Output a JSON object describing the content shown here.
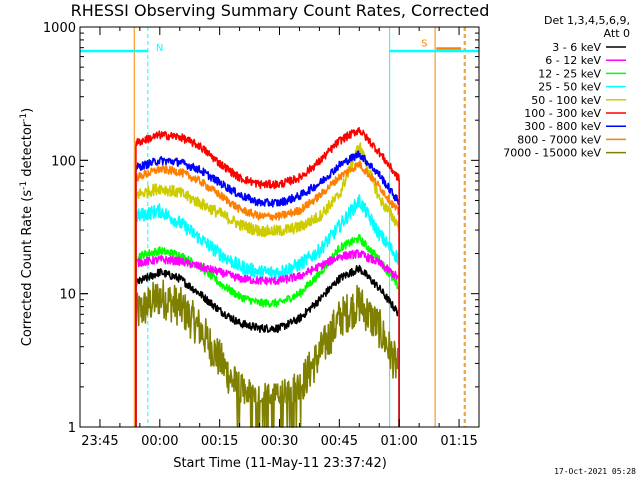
{
  "chart_data": {
    "type": "line",
    "title": "RHESSI Observing Summary Count Rates, Corrected",
    "xlabel": "Start Time (11-May-11 23:37:42)",
    "ylabel": "Corrected Count Rate (s",
    "ylabel_sup1": "-1",
    "ylabel_mid": " detector",
    "ylabel_sup2": "-1",
    "ylabel_end": ")",
    "yscale": "log",
    "ylim": [
      1,
      1000
    ],
    "xlim_minutes": [
      -20,
      80
    ],
    "x_tick_labels": [
      "23:45",
      "00:00",
      "00:15",
      "00:30",
      "00:45",
      "01:00",
      "01:15"
    ],
    "x_tick_minutes": [
      -15,
      0,
      15,
      30,
      45,
      60,
      75
    ],
    "y_tick_labels": [
      "1",
      "10",
      "100",
      "1000"
    ],
    "y_tick_values": [
      1,
      10,
      100,
      1000
    ],
    "legend_header": [
      "Det 1,3,4,5,6,9,",
      "Att 0"
    ],
    "legend_position": "right",
    "x_minutes": [
      -6,
      0,
      5,
      10,
      15,
      20,
      25,
      30,
      35,
      40,
      45,
      50,
      55,
      60
    ],
    "series": [
      {
        "name": "3 - 6 keV",
        "color": "#000000",
        "values": [
          12,
          14.5,
          13,
          10,
          7.5,
          6,
          5.5,
          5.5,
          6.5,
          9,
          13,
          15.5,
          11,
          7
        ]
      },
      {
        "name": "6 - 12 keV",
        "color": "#ff00ff",
        "values": [
          17,
          18,
          17.5,
          16,
          14.5,
          13,
          12.5,
          12.5,
          13.5,
          16,
          19,
          20,
          17,
          13
        ]
      },
      {
        "name": "12 - 25 keV",
        "color": "#00ff00",
        "values": [
          19,
          21,
          19.5,
          16,
          12,
          9.5,
          8.5,
          8.5,
          10,
          14,
          22,
          26,
          18,
          11
        ]
      },
      {
        "name": "25 - 50 keV",
        "color": "#00ffff",
        "values": [
          38,
          42,
          34,
          26,
          20,
          16,
          14.5,
          14.5,
          16.5,
          21,
          32,
          50,
          28,
          18
        ]
      },
      {
        "name": "50 - 100 keV",
        "color": "#cccc00",
        "values": [
          55,
          62,
          57,
          48,
          40,
          33,
          29.5,
          29.5,
          31.5,
          38,
          55,
          130,
          52,
          32
        ]
      },
      {
        "name": "100 - 300 keV",
        "color": "#ff0000",
        "values": [
          135,
          155,
          150,
          128,
          95,
          74,
          66,
          66,
          74,
          98,
          140,
          170,
          115,
          72
        ]
      },
      {
        "name": "300 - 800 keV",
        "color": "#0000ff",
        "values": [
          88,
          100,
          97,
          85,
          68,
          55,
          48,
          48,
          54,
          67,
          92,
          112,
          78,
          48
        ]
      },
      {
        "name": "800 - 7000 keV",
        "color": "#ff8000",
        "values": [
          74,
          86,
          82,
          70,
          55,
          43,
          38,
          38,
          42,
          54,
          75,
          94,
          64,
          40
        ]
      },
      {
        "name": "7000 - 15000 keV",
        "color": "#808000",
        "values": [
          7,
          9.5,
          8,
          5.5,
          3.2,
          1.8,
          1.5,
          1.5,
          2,
          3.5,
          6.5,
          8.5,
          5.5,
          2.6
        ]
      }
    ],
    "annotations": [
      {
        "text": "N",
        "color": "#00ffff",
        "x_minutes": -3,
        "level": 660
      },
      {
        "text": "S",
        "color": "#ff8000",
        "x_minutes": 69,
        "level": 690
      }
    ],
    "footer": "17-Oct-2021 05:28"
  }
}
